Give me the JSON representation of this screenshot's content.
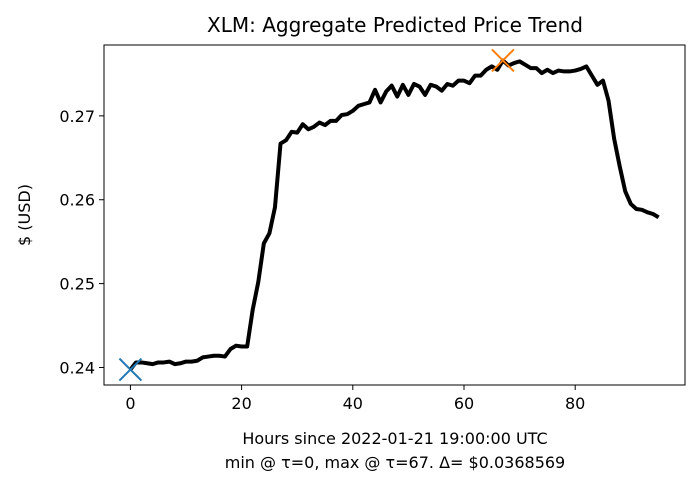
{
  "chart_data": {
    "type": "line",
    "title": "XLM: Aggregate Predicted Price Trend",
    "xlabel": [
      "Hours since 2022-01-21 19:00:00 UTC",
      "min @ τ=0, max @ τ=67. Δ= $0.0368569"
    ],
    "ylabel": "$ (USD)",
    "xlim": [
      -4.75,
      99.75
    ],
    "xticks": [
      0,
      20,
      40,
      60,
      80
    ],
    "ylim": [
      0.23791,
      0.27845
    ],
    "yticks": [
      0.24,
      0.25,
      0.26,
      0.27
    ],
    "x": [
      0,
      1,
      2,
      3,
      4,
      5,
      6,
      7,
      8,
      9,
      10,
      11,
      12,
      13,
      14,
      15,
      16,
      17,
      18,
      19,
      20,
      21,
      22,
      23,
      24,
      25,
      26,
      27,
      28,
      29,
      30,
      31,
      32,
      33,
      34,
      35,
      36,
      37,
      38,
      39,
      40,
      41,
      42,
      43,
      44,
      45,
      46,
      47,
      48,
      49,
      50,
      51,
      52,
      53,
      54,
      55,
      56,
      57,
      58,
      59,
      60,
      61,
      62,
      63,
      64,
      65,
      66,
      67,
      68,
      69,
      70,
      71,
      72,
      73,
      74,
      75,
      76,
      77,
      78,
      79,
      80,
      81,
      82,
      83,
      84,
      85,
      86,
      87,
      88,
      89,
      90,
      91,
      92,
      93,
      94,
      95
    ],
    "series": [
      {
        "color": "#000000",
        "values": [
          0.23975,
          0.2406,
          0.2406,
          0.2405,
          0.2404,
          0.2406,
          0.2406,
          0.2407,
          0.2404,
          0.2405,
          0.2407,
          0.2407,
          0.2408,
          0.2412,
          0.2413,
          0.2414,
          0.2414,
          0.2413,
          0.2422,
          0.2426,
          0.2425,
          0.2425,
          0.2469,
          0.2502,
          0.2548,
          0.256,
          0.2591,
          0.2667,
          0.2671,
          0.2681,
          0.268,
          0.269,
          0.2684,
          0.2687,
          0.2692,
          0.2689,
          0.2694,
          0.2694,
          0.2701,
          0.2702,
          0.2706,
          0.2712,
          0.2714,
          0.2716,
          0.2731,
          0.2716,
          0.2729,
          0.2736,
          0.2723,
          0.2737,
          0.2725,
          0.2738,
          0.2735,
          0.2725,
          0.2737,
          0.2735,
          0.273,
          0.2738,
          0.2736,
          0.2742,
          0.2742,
          0.2739,
          0.2748,
          0.2748,
          0.2755,
          0.2759,
          0.2755,
          0.27661,
          0.276,
          0.2763,
          0.2765,
          0.2761,
          0.2757,
          0.2757,
          0.2751,
          0.2755,
          0.2751,
          0.2754,
          0.2753,
          0.2753,
          0.2754,
          0.2756,
          0.2759,
          0.2748,
          0.2737,
          0.2742,
          0.2718,
          0.2673,
          0.264,
          0.261,
          0.2595,
          0.2589,
          0.2588,
          0.2585,
          0.2583,
          0.2579
        ]
      }
    ],
    "markers": [
      {
        "x": 0,
        "y": 0.23975,
        "color": "#1f77b4"
      },
      {
        "x": 67,
        "y": 0.27661,
        "color": "#ff7f0e"
      }
    ]
  }
}
